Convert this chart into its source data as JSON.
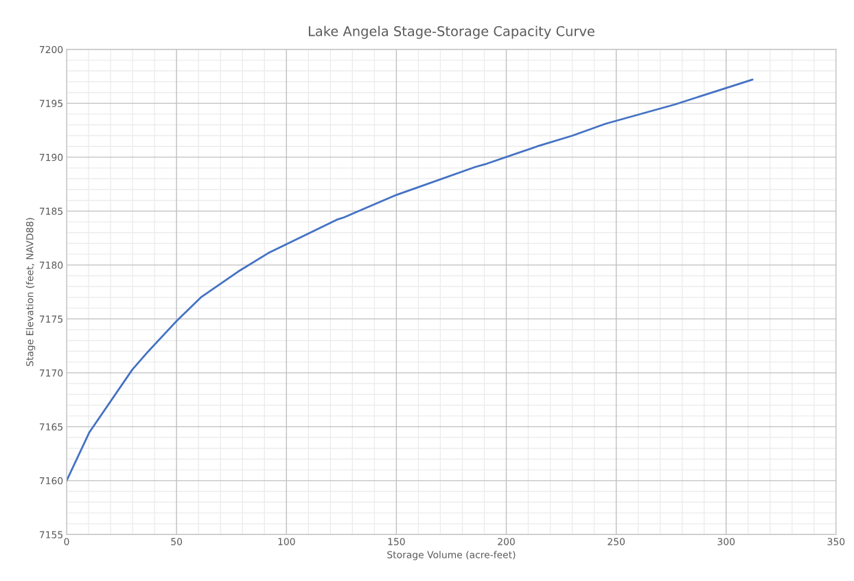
{
  "chart_data": {
    "type": "line",
    "title": "Lake Angela Stage-Storage Capacity Curve",
    "xlabel": "Storage Volume (acre-feet)",
    "ylabel": "Stage Elevation (feet, NAVD88)",
    "series": [
      {
        "color": "#4472c4",
        "x": [
          0,
          10.4,
          29.9,
          37.2,
          50,
          61.1,
          78.1,
          91.7,
          122.9,
          126,
          150,
          186,
          191.2,
          214,
          230.1,
          245.1,
          276.8,
          312
        ],
        "values": [
          7160,
          7164.5,
          7170.3,
          7172.0,
          7174.8,
          7177.0,
          7179.4,
          7181.1,
          7184.2,
          7184.4,
          7186.5,
          7189.1,
          7189.4,
          7191.0,
          7192.0,
          7193.1,
          7194.9,
          7197.2
        ]
      }
    ],
    "xlim": [
      0,
      350
    ],
    "xticks": [
      0,
      50,
      100,
      150,
      200,
      250,
      300,
      350
    ],
    "ylim": [
      7155,
      7200
    ],
    "yticks": [
      7155,
      7160,
      7165,
      7170,
      7175,
      7180,
      7185,
      7190,
      7195,
      7200
    ],
    "grid": true,
    "marker": "none",
    "line_style": "solid"
  }
}
